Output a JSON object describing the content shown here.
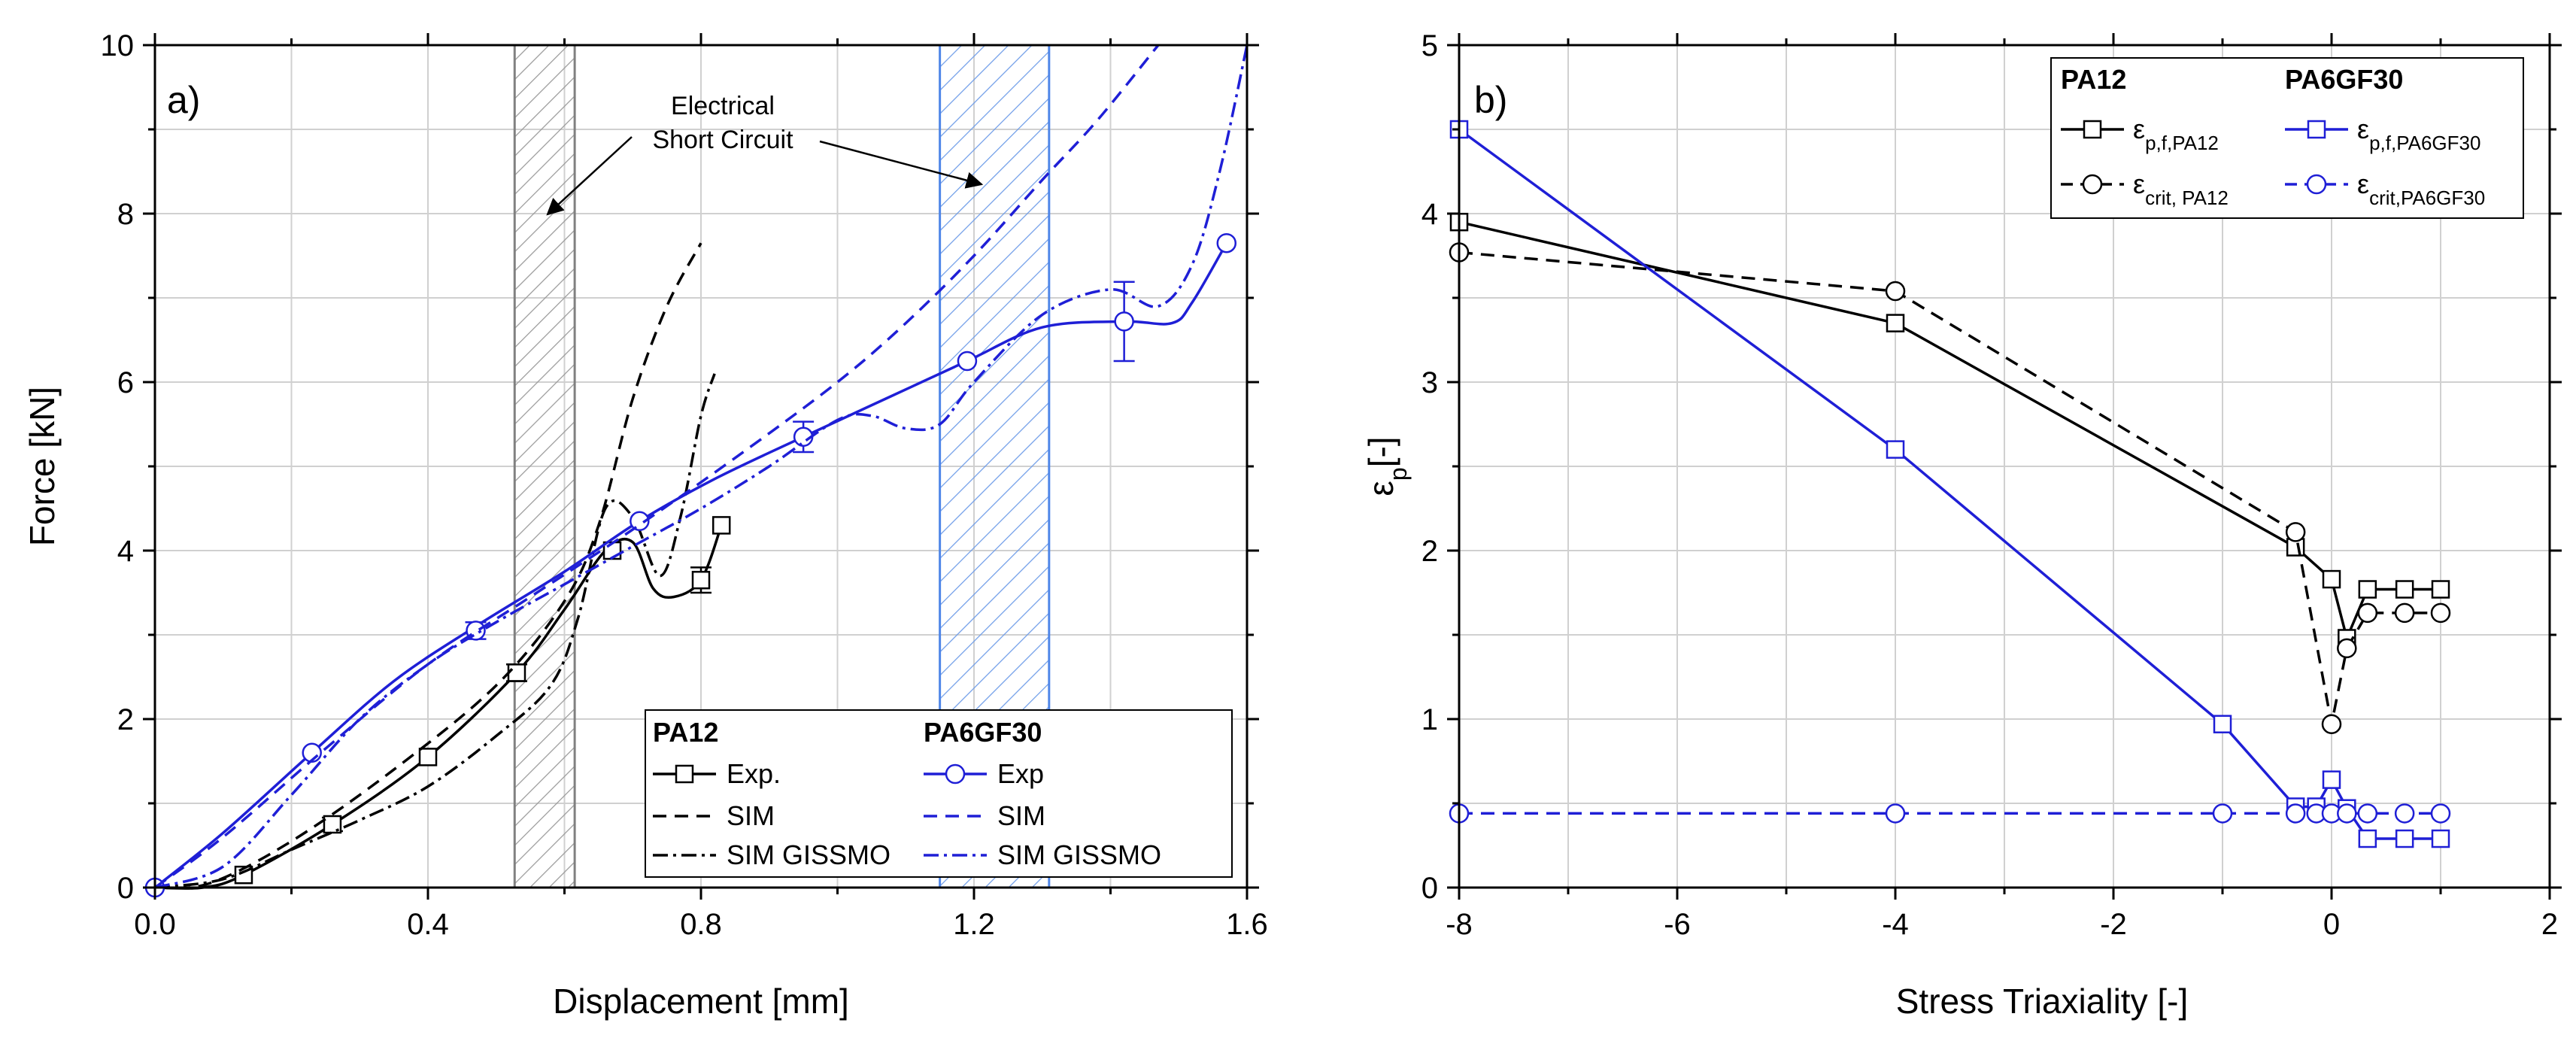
{
  "chart_data": [
    {
      "type": "line",
      "panel_label": "a)",
      "xlabel": "Displacement [mm]",
      "ylabel": "Force [kN]",
      "xlim": [
        0,
        1.6
      ],
      "ylim": [
        0,
        10
      ],
      "xticks": [
        0.0,
        0.4,
        0.8,
        1.2,
        1.6
      ],
      "xtick_labels": [
        "0.0",
        "0.4",
        "0.8",
        "1.2",
        "1.6"
      ],
      "yticks": [
        0,
        2,
        4,
        6,
        8,
        10
      ],
      "ytick_labels": [
        "0",
        "2",
        "4",
        "6",
        "8",
        "10"
      ],
      "grid": true,
      "legend_position": "lower-right",
      "legend_groups": [
        "PA12",
        "PA6GF30"
      ],
      "regions": [
        {
          "name": "PA12 short circuit",
          "x": [
            0.527,
            0.615
          ],
          "color": "#808080"
        },
        {
          "name": "PA6GF30 short circuit",
          "x": [
            1.15,
            1.31
          ],
          "color": "#4f86e8"
        }
      ],
      "annotation": {
        "line1": "Electrical",
        "line2": "Short Circuit",
        "arrow_targets": [
          "PA12 short circuit",
          "PA6GF30 short circuit"
        ]
      },
      "series": [
        {
          "name": "Exp.",
          "group": "PA12",
          "color": "#000000",
          "dash": "solid",
          "marker": "square",
          "x": [
            0.0,
            0.07,
            0.13,
            0.26,
            0.4,
            0.53,
            0.6,
            0.66,
            0.7,
            0.73,
            0.76,
            0.8,
            0.83
          ],
          "y": [
            0.0,
            0.0,
            0.15,
            0.75,
            1.55,
            2.55,
            3.3,
            4.0,
            4.1,
            3.55,
            3.45,
            3.65,
            4.3
          ],
          "markers_x": [
            0.13,
            0.26,
            0.4,
            0.53,
            0.67,
            0.8,
            0.83
          ],
          "markers_y": [
            0.15,
            0.75,
            1.55,
            2.55,
            4.0,
            3.65,
            4.3
          ],
          "errorbars": [
            {
              "x": 0.26,
              "y": 0.75,
              "err": 0.08
            },
            {
              "x": 0.53,
              "y": 2.55,
              "err": 0.1
            },
            {
              "x": 0.8,
              "y": 3.65,
              "err": 0.15
            }
          ]
        },
        {
          "name": "SIM",
          "group": "PA12",
          "color": "#000000",
          "dash": "dash",
          "x": [
            0.0,
            0.08,
            0.2,
            0.35,
            0.5,
            0.6,
            0.65,
            0.7,
            0.75,
            0.8
          ],
          "y": [
            0.0,
            0.05,
            0.55,
            1.4,
            2.4,
            3.4,
            4.3,
            5.8,
            6.9,
            7.65
          ]
        },
        {
          "name": "SIM GISSMO",
          "group": "PA12",
          "color": "#000000",
          "dash": "dashdot",
          "x": [
            0.0,
            0.1,
            0.2,
            0.3,
            0.4,
            0.5,
            0.58,
            0.62,
            0.66,
            0.7,
            0.74,
            0.77,
            0.8,
            0.82
          ],
          "y": [
            0.0,
            0.1,
            0.45,
            0.8,
            1.2,
            1.8,
            2.4,
            3.2,
            4.5,
            4.4,
            3.7,
            4.4,
            5.6,
            6.1
          ]
        },
        {
          "name": "Exp",
          "group": "PA6GF30",
          "color": "#1f1fd6",
          "dash": "solid",
          "marker": "circle",
          "x": [
            0.0,
            0.1,
            0.23,
            0.35,
            0.47,
            0.6,
            0.71,
            0.82,
            0.95,
            1.07,
            1.19,
            1.3,
            1.42,
            1.49,
            1.52,
            1.57
          ],
          "y": [
            0.0,
            0.65,
            1.6,
            2.45,
            3.1,
            3.75,
            4.35,
            4.85,
            5.35,
            5.8,
            6.25,
            6.65,
            6.72,
            6.7,
            6.95,
            7.65
          ],
          "markers_x": [
            0.0,
            0.23,
            0.47,
            0.71,
            0.95,
            1.19,
            1.42,
            1.57
          ],
          "markers_y": [
            0.0,
            1.6,
            3.05,
            4.35,
            5.35,
            6.25,
            6.72,
            7.65
          ],
          "errorbars": [
            {
              "x": 0.47,
              "y": 3.05,
              "err": 0.1
            },
            {
              "x": 0.95,
              "y": 5.35,
              "err": 0.18
            },
            {
              "x": 1.42,
              "y": 6.72,
              "err": 0.47
            }
          ]
        },
        {
          "name": "SIM",
          "group": "PA6GF30",
          "color": "#1f1fd6",
          "dash": "dash",
          "x": [
            0.0,
            0.1,
            0.25,
            0.4,
            0.55,
            0.7,
            0.85,
            1.0,
            1.1,
            1.2,
            1.3,
            1.38,
            1.47
          ],
          "y": [
            0.0,
            0.6,
            1.65,
            2.65,
            3.45,
            4.25,
            5.1,
            6.0,
            6.7,
            7.5,
            8.4,
            9.1,
            10.0
          ]
        },
        {
          "name": "SIM GISSMO",
          "group": "PA6GF30",
          "color": "#1f1fd6",
          "dash": "dashdot",
          "x": [
            0.0,
            0.1,
            0.2,
            0.3,
            0.4,
            0.5,
            0.6,
            0.7,
            0.8,
            0.9,
            1.0,
            1.05,
            1.1,
            1.15,
            1.2,
            1.3,
            1.4,
            1.47,
            1.52,
            1.56,
            1.6
          ],
          "y": [
            0.0,
            0.25,
            1.1,
            2.0,
            2.65,
            3.15,
            3.6,
            4.05,
            4.5,
            5.0,
            5.55,
            5.6,
            5.45,
            5.5,
            6.0,
            6.8,
            7.1,
            6.9,
            7.4,
            8.5,
            10.0
          ]
        }
      ]
    },
    {
      "type": "line",
      "panel_label": "b)",
      "xlabel": "Stress Triaxiality [-]",
      "ylabel": "εp[-]",
      "xlim": [
        -8,
        2
      ],
      "ylim": [
        0,
        5
      ],
      "xticks": [
        -8,
        -6,
        -4,
        -2,
        0,
        2
      ],
      "xtick_labels": [
        "-8",
        "-6",
        "-4",
        "-2",
        "0",
        "2"
      ],
      "yticks": [
        0,
        1,
        2,
        3,
        4,
        5
      ],
      "ytick_labels": [
        "0",
        "1",
        "2",
        "3",
        "4",
        "5"
      ],
      "grid": true,
      "legend_position": "top-right",
      "legend_groups": [
        "PA12",
        "PA6GF30"
      ],
      "series": [
        {
          "name": "εp,f,PA12",
          "group": "PA12",
          "color": "#000000",
          "dash": "solid",
          "marker": "square",
          "x": [
            -8,
            -4,
            -0.33,
            0,
            0.14,
            0.33,
            0.67,
            1
          ],
          "y": [
            3.95,
            3.35,
            2.02,
            1.83,
            1.48,
            1.77,
            1.77,
            1.77
          ]
        },
        {
          "name": "εcrit, PA12",
          "group": "PA12",
          "color": "#000000",
          "dash": "dash",
          "marker": "circle",
          "x": [
            -8,
            -4,
            -0.33,
            0,
            0.14,
            0.33,
            0.67,
            1
          ],
          "y": [
            3.77,
            3.54,
            2.11,
            0.97,
            1.42,
            1.63,
            1.63,
            1.63
          ]
        },
        {
          "name": "εp,f,PA6GF30",
          "group": "PA6GF30",
          "color": "#1f1fd6",
          "dash": "solid",
          "marker": "square",
          "x": [
            -8,
            -4,
            -1,
            -0.33,
            -0.14,
            0,
            0.14,
            0.33,
            0.67,
            1
          ],
          "y": [
            4.5,
            2.6,
            0.97,
            0.48,
            0.48,
            0.64,
            0.47,
            0.29,
            0.29,
            0.29
          ]
        },
        {
          "name": "εcrit,PA6GF30",
          "group": "PA6GF30",
          "color": "#1f1fd6",
          "dash": "dash",
          "marker": "circle",
          "x": [
            -8,
            -4,
            -1,
            -0.33,
            -0.14,
            0,
            0.14,
            0.33,
            0.67,
            1
          ],
          "y": [
            0.44,
            0.44,
            0.44,
            0.44,
            0.44,
            0.44,
            0.44,
            0.44,
            0.44,
            0.44
          ]
        }
      ]
    }
  ]
}
